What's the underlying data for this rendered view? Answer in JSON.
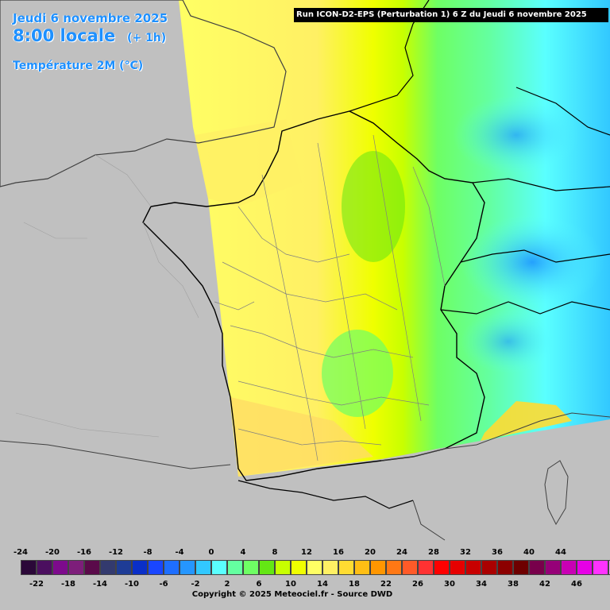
{
  "header": {
    "date": "Jeudi 6 novembre 2025",
    "time": "8:00 locale",
    "offset": "(+ 1h)",
    "parameter": "Température 2M (°C)",
    "run_info": "Run ICON-D2-EPS (Perturbation 1) 6 Z du Jeudi 6 novembre 2025"
  },
  "map": {
    "background_color": "#c0c0c0",
    "border_color": "#000000",
    "region_line_color": "#808080"
  },
  "legend": {
    "ticks_top": [
      "-24",
      "-20",
      "-16",
      "-12",
      "-8",
      "-4",
      "0",
      "4",
      "8",
      "12",
      "16",
      "20",
      "24",
      "28",
      "32",
      "36",
      "40",
      "44"
    ],
    "ticks_bottom": [
      "-22",
      "-18",
      "-14",
      "-10",
      "-6",
      "-2",
      "2",
      "6",
      "10",
      "14",
      "18",
      "22",
      "26",
      "30",
      "34",
      "38",
      "42",
      "46"
    ],
    "colors": [
      "#2b0838",
      "#4b0f5f",
      "#7d0a8c",
      "#7d1e7a",
      "#5a0a4a",
      "#333a6e",
      "#1e3c96",
      "#0a2fc8",
      "#1946ff",
      "#1e6eff",
      "#2596ff",
      "#32c8ff",
      "#5affff",
      "#64ffa0",
      "#6eff64",
      "#64e614",
      "#c8ff00",
      "#f0ff00",
      "#ffff64",
      "#fff064",
      "#ffdc32",
      "#ffbe14",
      "#ff9600",
      "#ff7814",
      "#ff5a28",
      "#ff3232",
      "#ff0000",
      "#e60000",
      "#c80000",
      "#aa0000",
      "#8c0000",
      "#6e0000",
      "#78004b",
      "#960078",
      "#c800b4",
      "#e600e6",
      "#ff32ff",
      "#ff96ff"
    ]
  },
  "copyright": "Copyright © 2025 Meteociel.fr - Source DWD"
}
